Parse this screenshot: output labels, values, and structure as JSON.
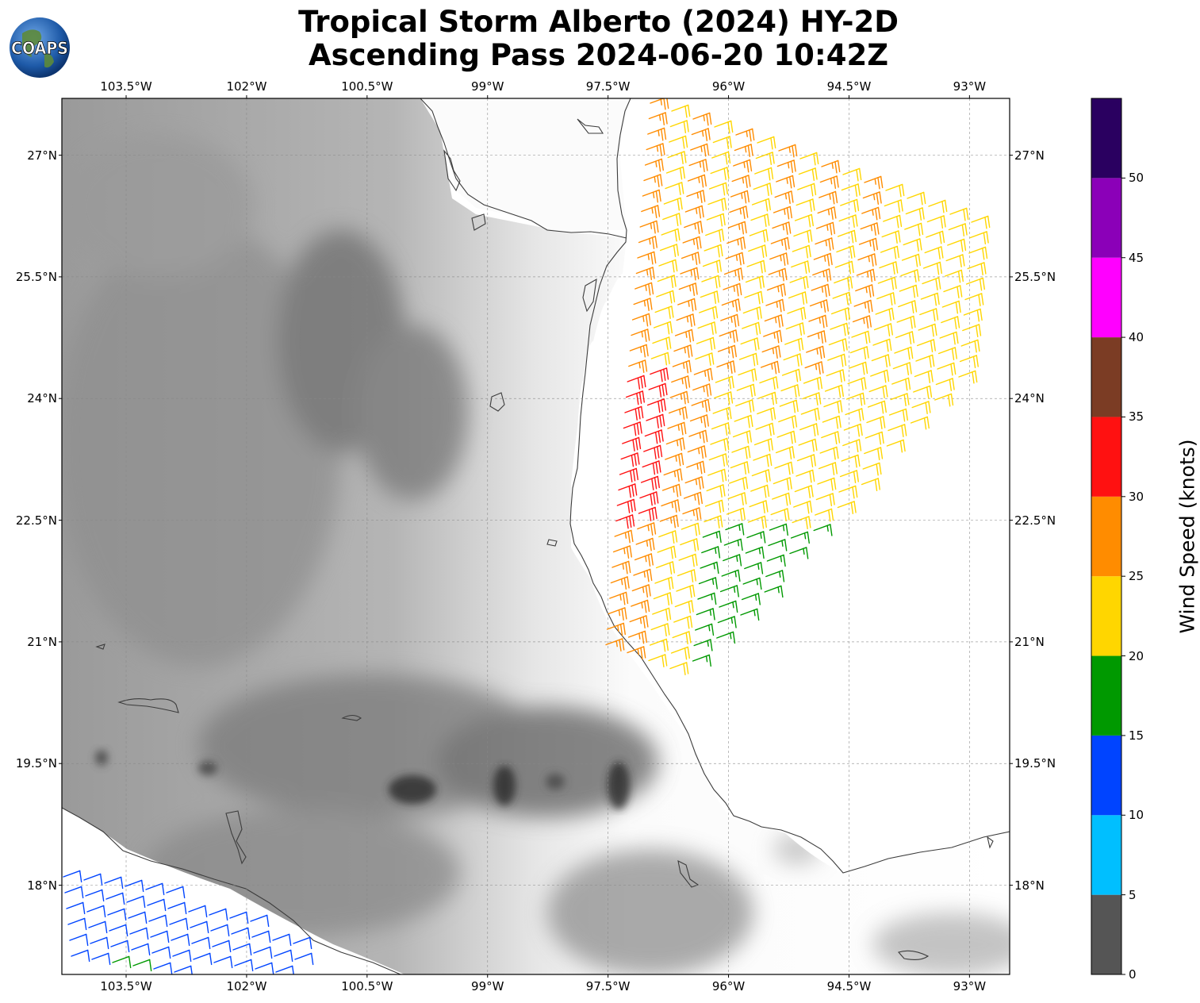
{
  "header": {
    "title_line1": "Tropical Storm Alberto (2024) HY-2D",
    "title_line2": "Ascending Pass 2024-06-20 10:42Z",
    "logo_text": "COAPS"
  },
  "map": {
    "lon_ticks": [
      "103.5°W",
      "102°W",
      "100.5°W",
      "99°W",
      "97.5°W",
      "96°W",
      "94.5°W",
      "93°W"
    ],
    "lat_ticks": [
      "27°N",
      "25.5°N",
      "24°N",
      "22.5°N",
      "21°N",
      "19.5°N",
      "18°N"
    ],
    "lon_range": [
      -104.3,
      -92.5
    ],
    "lat_range": [
      16.9,
      27.7
    ],
    "background": "grayscale topography, gray dashed gridlines, dark gray coastlines",
    "barb_colors": {
      "blue": "#0044ff",
      "green": "#009900",
      "yellow": "#ffd600",
      "orange": "#ff8c00",
      "red": "#ff1111"
    }
  },
  "colorbar": {
    "label": "Wind Speed (knots)",
    "bounds": [
      0,
      5,
      10,
      15,
      20,
      25,
      30,
      35,
      40,
      45,
      50,
      55
    ],
    "tick_labels": [
      "0",
      "5",
      "10",
      "15",
      "20",
      "25",
      "30",
      "35",
      "40",
      "45",
      "50"
    ],
    "colors": [
      "#555555",
      "#00bfff",
      "#0044ff",
      "#009900",
      "#ffd600",
      "#ff8c00",
      "#ff1111",
      "#7b3c24",
      "#ff00ff",
      "#8b00b8",
      "#2a0060"
    ]
  }
}
